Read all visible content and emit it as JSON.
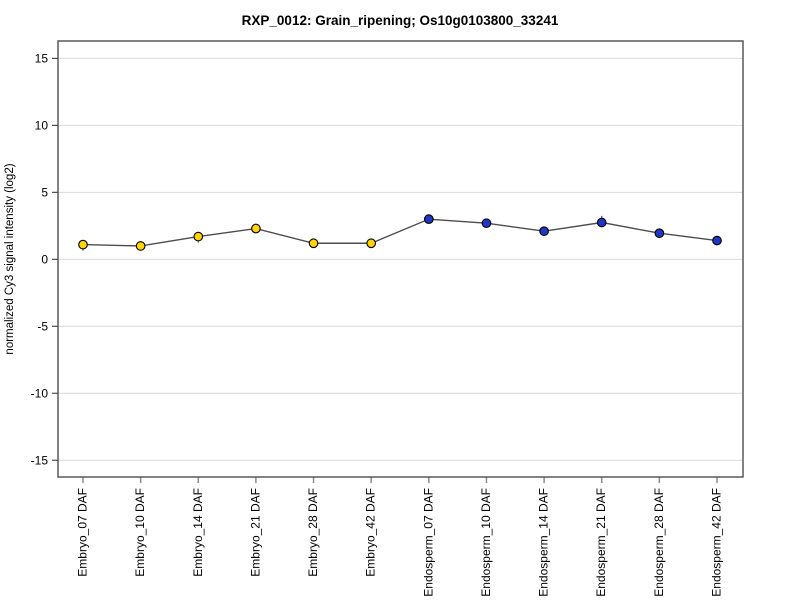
{
  "page": {
    "background": "#ffffff"
  },
  "chart_data": {
    "type": "line",
    "title": "RXP_0012: Grain_ripening; Os10g0103800_33241",
    "xlabel": "",
    "ylabel": "normalized Cy3 signal intensity (log2)",
    "categories": [
      "Embryo_07 DAF",
      "Embryo_10 DAF",
      "Embryo_14 DAF",
      "Embryo_21 DAF",
      "Embryo_28 DAF",
      "Embryo_42 DAF",
      "Endosperm_07 DAF",
      "Endosperm_10 DAF",
      "Endosperm_14 DAF",
      "Endosperm_21 DAF",
      "Endosperm_28 DAF",
      "Endosperm_42 DAF"
    ],
    "series": [
      {
        "name": "normalized Cy3 signal intensity (log2)",
        "values": [
          1.1,
          1.0,
          1.7,
          2.3,
          1.2,
          1.2,
          3.0,
          2.7,
          2.1,
          2.75,
          1.95,
          1.4
        ],
        "error_low": [
          0.45,
          0.1,
          0.45,
          0.15,
          0.1,
          0.1,
          0.1,
          0.2,
          0.1,
          0.15,
          0.1,
          0.05
        ],
        "error_high": [
          0.1,
          0.1,
          0.35,
          0.15,
          0.1,
          0.1,
          0.15,
          0.2,
          0.1,
          0.5,
          0.1,
          0.05
        ]
      }
    ],
    "groups": [
      {
        "name": "Embryo",
        "indices": [
          0,
          1,
          2,
          3,
          4,
          5
        ],
        "marker_color": "#ffd400"
      },
      {
        "name": "Endosperm",
        "indices": [
          6,
          7,
          8,
          9,
          10,
          11
        ],
        "marker_color": "#2236c4"
      }
    ],
    "yticks": [
      -15,
      -10,
      -5,
      0,
      5,
      10,
      15
    ],
    "ylim": [
      -16.25,
      16.3
    ],
    "grid": true,
    "legend_position": "none",
    "colors": {
      "line": "#4d4d4d",
      "marker_edge": "#000000",
      "error_bar": "#4d4d4d",
      "grid": "#d9d9d9",
      "frame": "#4d4d4d",
      "x_tick": "#8c8c8c",
      "y_tick": "#4d4d4d",
      "text": "#000000"
    }
  }
}
